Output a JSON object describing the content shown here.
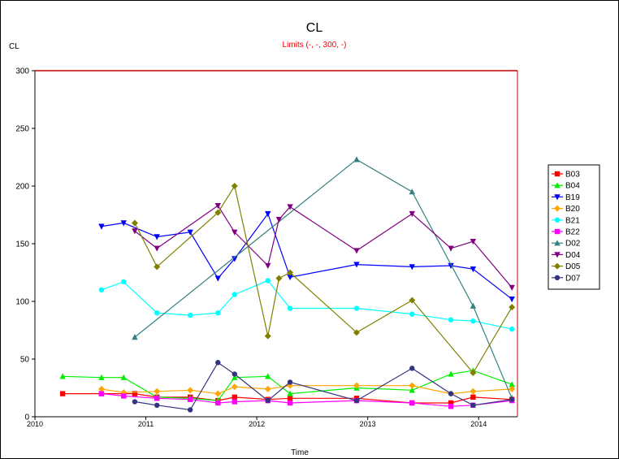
{
  "chart_data": {
    "type": "line",
    "title": "CL",
    "subtitle": "Limits (-, -, 300, -)",
    "ylabel": "CL",
    "xlabel": "Time",
    "ylim": [
      0,
      300
    ],
    "xlim": [
      2010.0,
      2014.35
    ],
    "x_ticks": [
      2010,
      2011,
      2012,
      2013,
      2014
    ],
    "y_ticks": [
      0,
      50,
      100,
      150,
      200,
      250,
      300
    ],
    "limit_line": 300,
    "legend_position": "right",
    "colors": {
      "title": "#000000",
      "subtitle": "#ff0000",
      "limit": "#c00000"
    },
    "series": [
      {
        "name": "B03",
        "color": "#ff0000",
        "marker": "square",
        "x": [
          2010.25,
          2010.6,
          2010.9,
          2011.1,
          2011.4,
          2011.65,
          2011.8,
          2012.1,
          2012.3,
          2012.9,
          2013.4,
          2013.75,
          2013.95,
          2014.3
        ],
        "y": [
          20,
          20,
          20,
          17,
          17,
          14,
          17,
          15,
          16,
          16,
          12,
          12,
          17,
          15
        ]
      },
      {
        "name": "B04",
        "color": "#00ee00",
        "marker": "triangle-up",
        "x": [
          2010.25,
          2010.6,
          2010.8,
          2011.1,
          2011.4,
          2011.65,
          2011.8,
          2012.1,
          2012.3,
          2012.9,
          2013.4,
          2013.75,
          2013.95,
          2014.3
        ],
        "y": [
          35,
          34,
          34,
          17,
          16,
          14,
          34,
          35,
          20,
          25,
          23,
          37,
          40,
          28
        ]
      },
      {
        "name": "B19",
        "color": "#0000ff",
        "marker": "triangle-down",
        "x": [
          2010.6,
          2010.8,
          2011.1,
          2011.4,
          2011.65,
          2011.8,
          2012.1,
          2012.3,
          2012.9,
          2013.4,
          2013.75,
          2013.95,
          2014.3
        ],
        "y": [
          165,
          168,
          156,
          160,
          120,
          137,
          176,
          121,
          132,
          130,
          131,
          128,
          102
        ]
      },
      {
        "name": "B20",
        "color": "#ffa500",
        "marker": "diamond",
        "x": [
          2010.6,
          2010.8,
          2011.1,
          2011.4,
          2011.65,
          2011.8,
          2012.1,
          2012.3,
          2012.9,
          2013.4,
          2013.75,
          2013.95,
          2014.3
        ],
        "y": [
          24,
          21,
          22,
          23,
          20,
          26,
          24,
          27,
          27,
          27,
          20,
          22,
          24
        ]
      },
      {
        "name": "B21",
        "color": "#00ffff",
        "marker": "circle",
        "x": [
          2010.6,
          2010.8,
          2011.1,
          2011.4,
          2011.65,
          2011.8,
          2012.1,
          2012.3,
          2012.9,
          2013.4,
          2013.75,
          2013.95,
          2014.3
        ],
        "y": [
          110,
          117,
          90,
          88,
          90,
          106,
          118,
          94,
          94,
          89,
          84,
          83,
          76
        ]
      },
      {
        "name": "B22",
        "color": "#ff00ff",
        "marker": "square",
        "x": [
          2010.6,
          2010.8,
          2011.1,
          2011.4,
          2011.65,
          2011.8,
          2012.1,
          2012.3,
          2012.9,
          2013.4,
          2013.75,
          2013.95,
          2014.3
        ],
        "y": [
          20,
          18,
          16,
          15,
          12,
          13,
          14,
          12,
          14,
          12,
          9,
          10,
          14
        ]
      },
      {
        "name": "D02",
        "color": "#338080",
        "marker": "triangle-up",
        "x": [
          2010.9,
          2012.9,
          2013.4,
          2013.95,
          2014.3
        ],
        "y": [
          69,
          223,
          195,
          96,
          16
        ]
      },
      {
        "name": "D04",
        "color": "#800080",
        "marker": "triangle-down",
        "x": [
          2010.9,
          2011.1,
          2011.65,
          2011.8,
          2012.1,
          2012.2,
          2012.3,
          2012.9,
          2013.4,
          2013.75,
          2013.95,
          2014.3
        ],
        "y": [
          161,
          146,
          183,
          160,
          131,
          171,
          182,
          144,
          176,
          146,
          152,
          112
        ]
      },
      {
        "name": "D05",
        "color": "#808000",
        "marker": "diamond",
        "x": [
          2010.9,
          2011.1,
          2011.65,
          2011.8,
          2012.1,
          2012.2,
          2012.3,
          2012.9,
          2013.4,
          2013.95,
          2014.3
        ],
        "y": [
          168,
          130,
          177,
          200,
          70,
          120,
          125,
          73,
          101,
          38,
          95
        ]
      },
      {
        "name": "D07",
        "color": "#333380",
        "marker": "circle",
        "x": [
          2010.9,
          2011.1,
          2011.4,
          2011.65,
          2011.8,
          2012.1,
          2012.3,
          2012.9,
          2013.4,
          2013.75,
          2013.95,
          2014.3
        ],
        "y": [
          13,
          10,
          6,
          47,
          37,
          14,
          30,
          14,
          42,
          20,
          10,
          15
        ]
      }
    ]
  }
}
